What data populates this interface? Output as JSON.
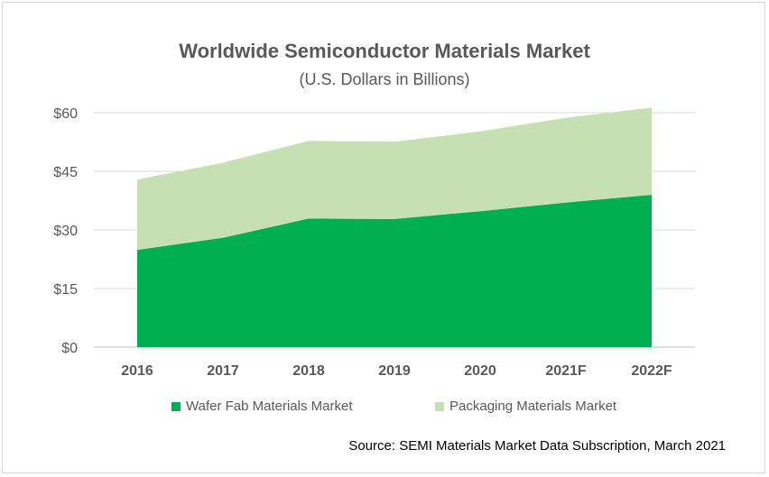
{
  "chart_data": {
    "type": "area",
    "stacked": true,
    "title": "Worldwide Semiconductor Materials Market",
    "subtitle": "(U.S. Dollars in Billions)",
    "categories": [
      "2016",
      "2017",
      "2018",
      "2019",
      "2020",
      "2021F",
      "2022F"
    ],
    "series": [
      {
        "name": "Wafer Fab Materials Market",
        "values": [
          24.9,
          28.0,
          32.9,
          32.8,
          34.8,
          37.0,
          39.0
        ],
        "color": "#00b050"
      },
      {
        "name": "Packaging Materials Market",
        "values": [
          18.0,
          19.2,
          19.9,
          19.8,
          20.4,
          21.7,
          22.3
        ],
        "color": "#c6e0b4"
      }
    ],
    "yticks": [
      "$0",
      "$15",
      "$30",
      "$45",
      "$60"
    ],
    "ylim": [
      0,
      60
    ],
    "grid": true,
    "legend_position": "bottom",
    "source": "Source: SEMI Materials Market Data Subscription, March 2021"
  }
}
